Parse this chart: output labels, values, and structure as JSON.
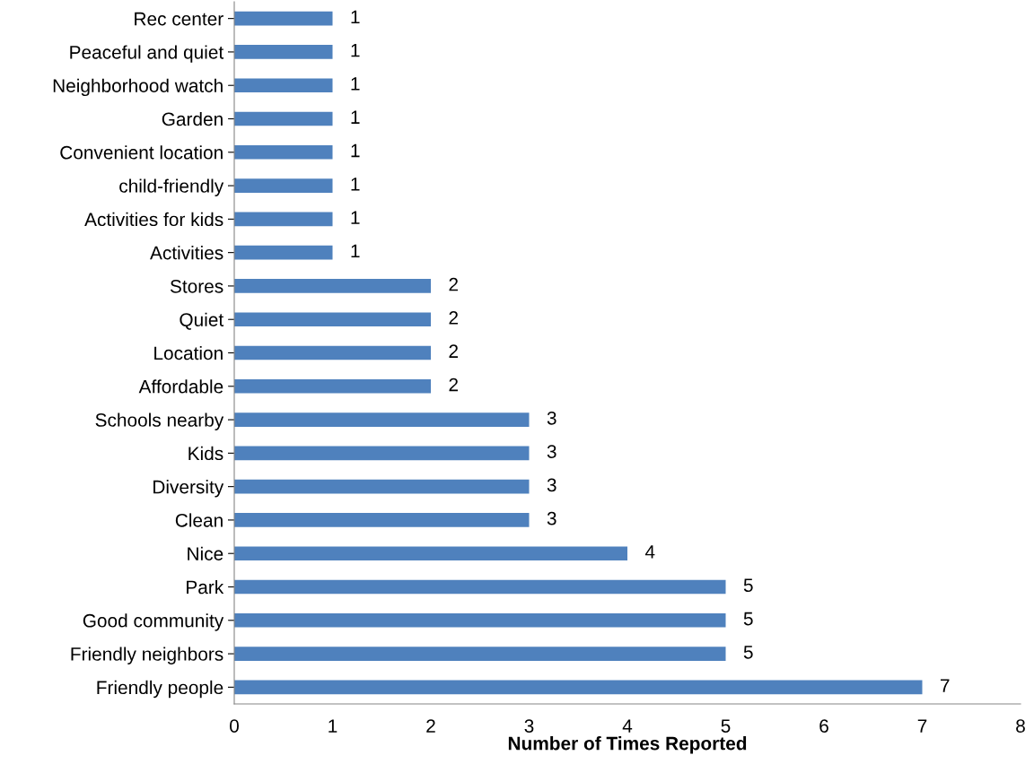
{
  "chart_data": {
    "type": "bar",
    "orientation": "horizontal",
    "xlabel": "Number of Times Reported",
    "categories": [
      "Rec center",
      "Peaceful and quiet",
      "Neighborhood watch",
      "Garden",
      "Convenient location",
      "child-friendly",
      "Activities for kids",
      "Activities",
      "Stores",
      "Quiet",
      "Location",
      "Affordable",
      "Schools nearby",
      "Kids",
      "Diversity",
      "Clean",
      "Nice",
      "Park",
      "Good community",
      "Friendly neighbors",
      "Friendly people"
    ],
    "values": [
      1,
      1,
      1,
      1,
      1,
      1,
      1,
      1,
      2,
      2,
      2,
      2,
      3,
      3,
      3,
      3,
      4,
      5,
      5,
      5,
      7
    ],
    "color": "#4f81bd",
    "xlim": [
      0,
      8
    ],
    "xticks": [
      0,
      1,
      2,
      3,
      4,
      5,
      6,
      7,
      8
    ],
    "data_labels": true,
    "grid": false,
    "legend": false
  }
}
